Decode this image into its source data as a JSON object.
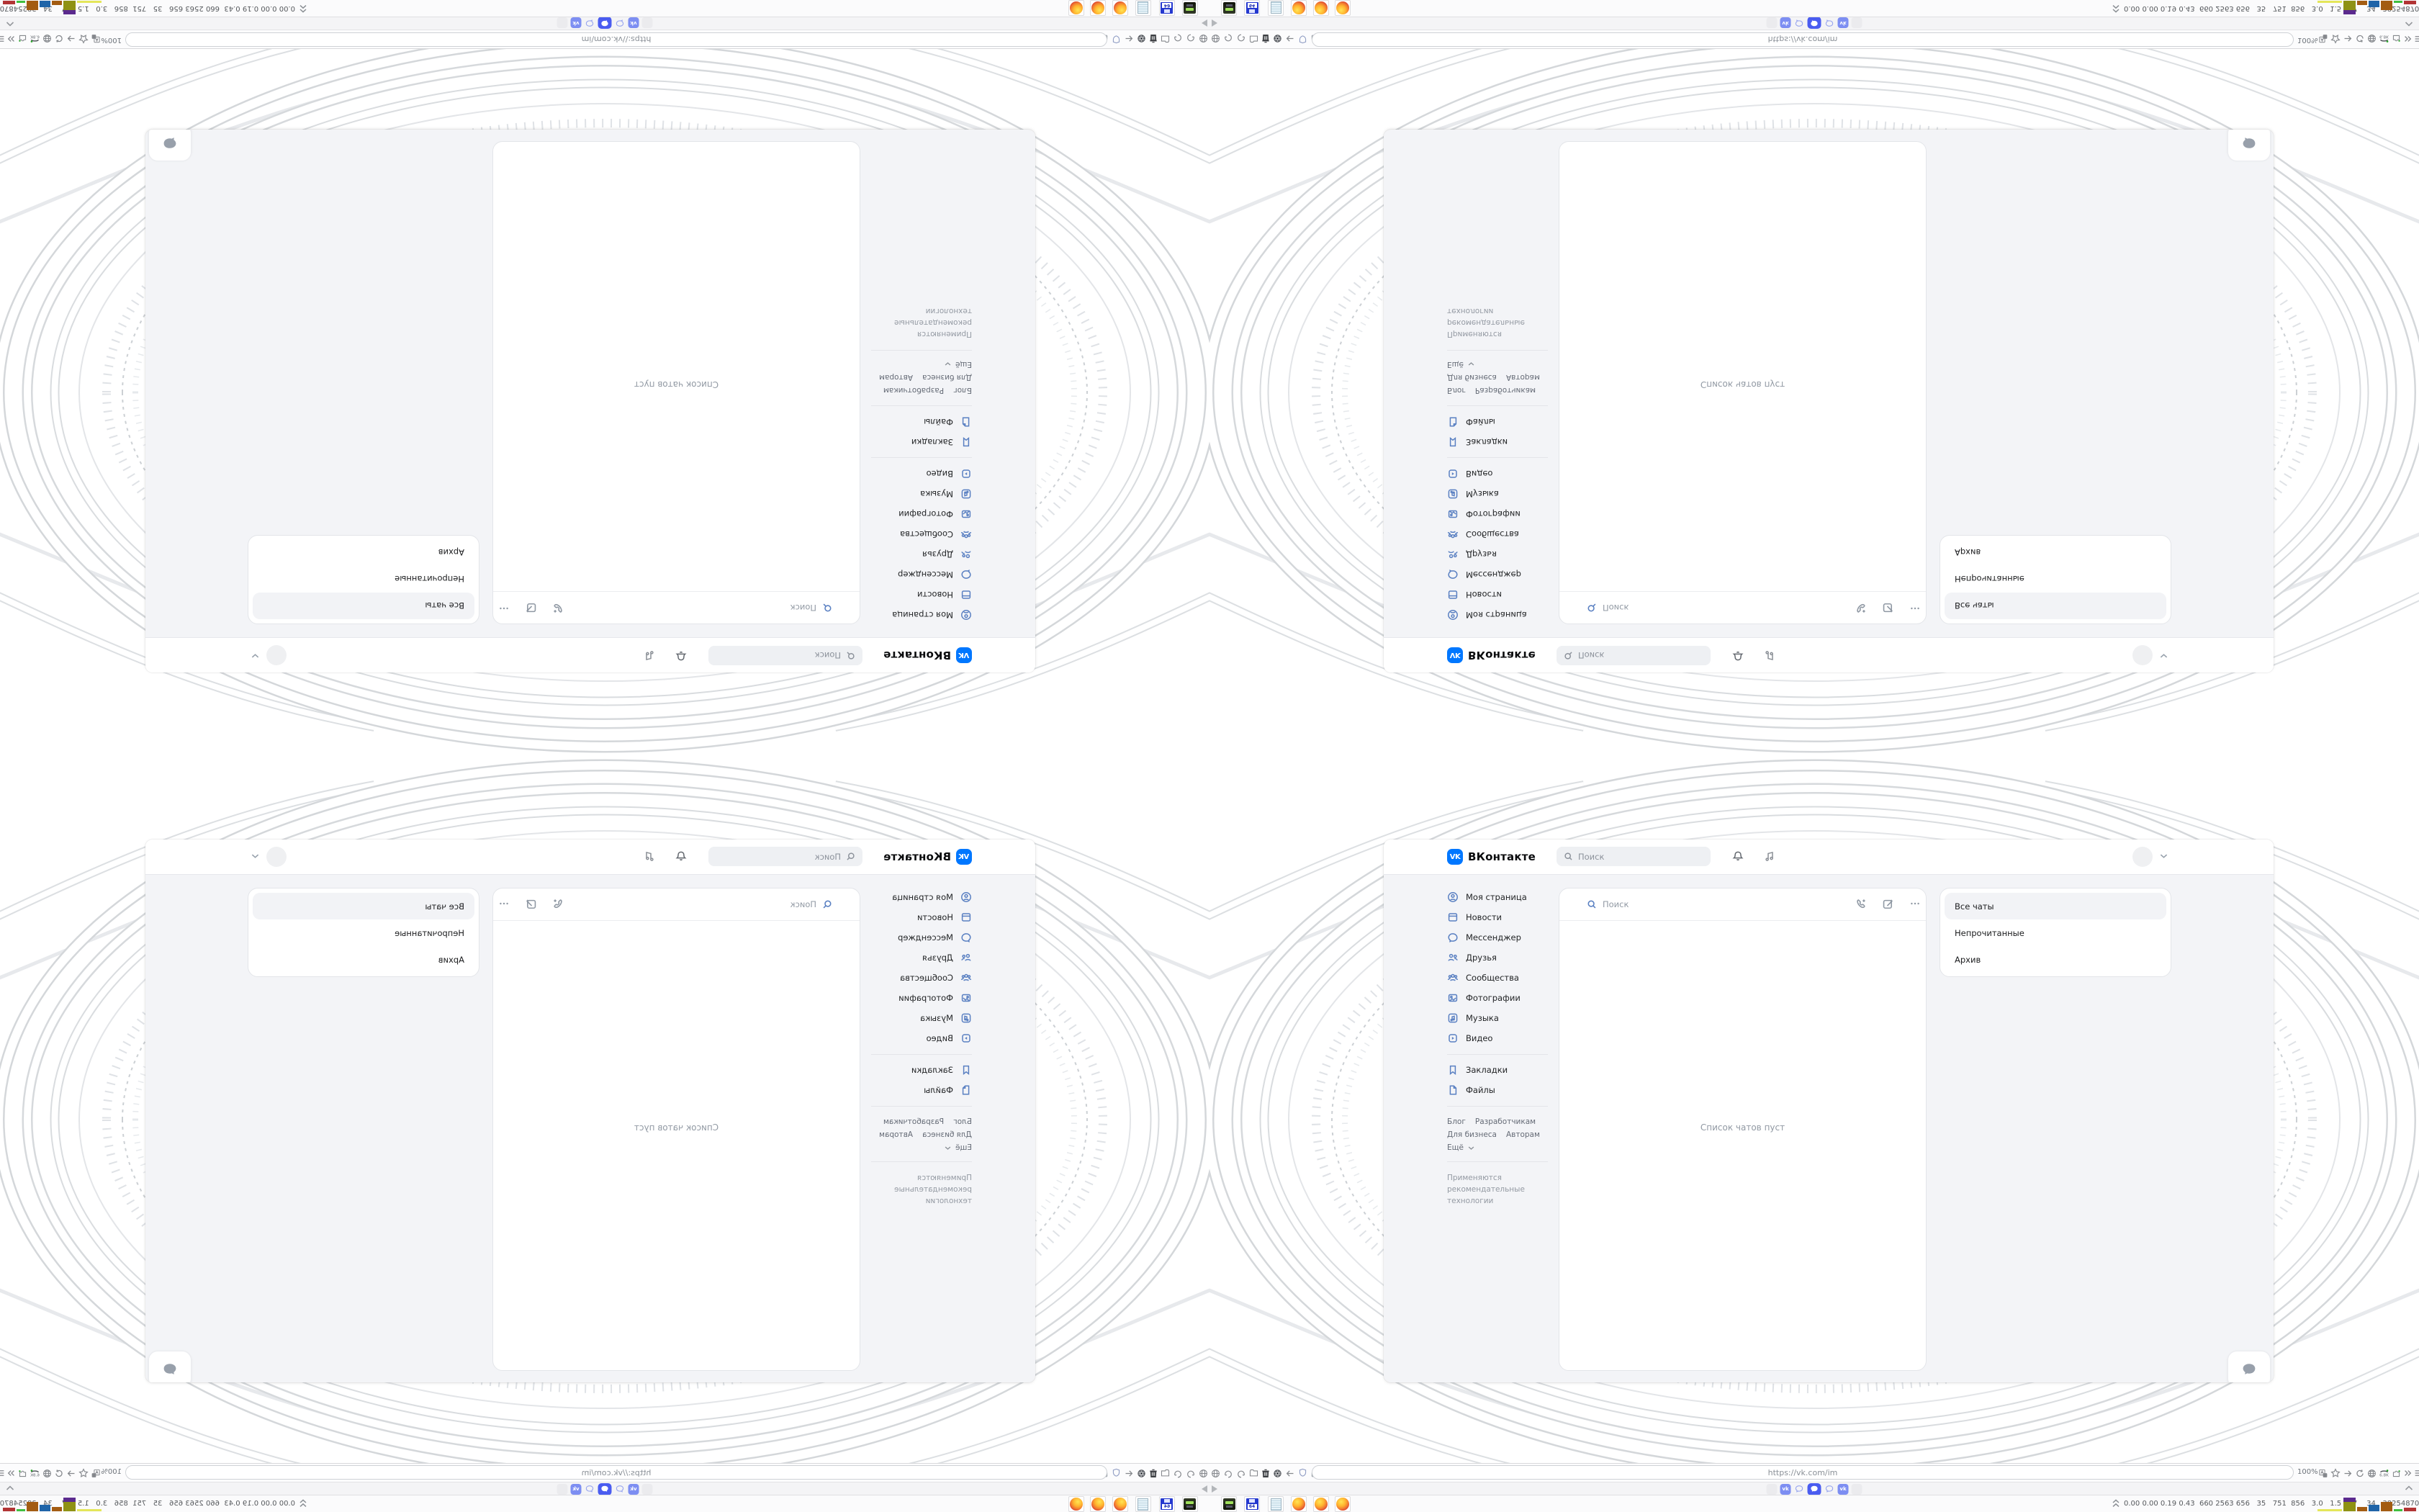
{
  "vk": {
    "logo": "VK",
    "brand": "ВКонтакте",
    "favicon_label": "vk",
    "header": {
      "search_placeholder": "Поиск"
    },
    "sidebar": {
      "items": [
        {
          "icon": "profile-icon",
          "label": "Моя страница"
        },
        {
          "icon": "news-icon",
          "label": "Новости"
        },
        {
          "icon": "messenger-icon",
          "label": "Мессенджер"
        },
        {
          "icon": "friends-icon",
          "label": "Друзья"
        },
        {
          "icon": "communities-icon",
          "label": "Сообщества"
        },
        {
          "icon": "photos-icon",
          "label": "Фотографии"
        },
        {
          "icon": "music-icon",
          "label": "Музыка"
        },
        {
          "icon": "video-icon",
          "label": "Видео"
        },
        {
          "icon": "bookmarks-icon",
          "label": "Закладки"
        },
        {
          "icon": "files-icon",
          "label": "Файлы"
        }
      ]
    },
    "footer_links": [
      "Блог",
      "Разработчикам",
      "Для бизнеса",
      "Авторам",
      "Ещё"
    ],
    "recommendation_note": "Применяются рекомендательные технологии",
    "messenger": {
      "search_placeholder": "Поиск",
      "empty_state": "Список чатов пуст"
    },
    "chat_filters": {
      "items": [
        "Все чаты",
        "Непрочитанные",
        "Архив"
      ],
      "active": "Все чаты"
    }
  },
  "browser": {
    "url": "https://vk.com/im",
    "zoom_level": "100%",
    "extension_badge": "6.8K",
    "tabs": [
      {
        "type": "empty"
      },
      {
        "type": "vk"
      },
      {
        "type": "bubble"
      },
      {
        "type": "bubble",
        "active": true
      },
      {
        "type": "bubble"
      },
      {
        "type": "vk"
      },
      {
        "type": "empty"
      }
    ]
  },
  "taskbar": {
    "launchers": [
      "drive-app",
      "floppy-64-app",
      "notepad-app",
      "firefox",
      "firefox",
      "firefox"
    ],
    "floppy_label": "64",
    "monitor_text": "0.00 0.00 0.19 0.43  660 2563 656   35   751  856   3.0   1.5   37    34   38254870",
    "graph": [
      {
        "w": 34,
        "h": 3,
        "color": "#e4e65a"
      },
      {
        "w": 17,
        "h": 13,
        "color": "#8f9214",
        "cap": "#5b2a8e",
        "caph": 6
      },
      {
        "w": 14,
        "h": 6,
        "color": "#a35c12"
      },
      {
        "w": 15,
        "h": 9,
        "color": "#1f64a8"
      },
      {
        "w": 16,
        "h": 13,
        "color": "#a35c12"
      },
      {
        "w": 12,
        "h": 3,
        "color": "#3fbf3f"
      },
      {
        "w": 17,
        "h": 5,
        "color": "#b23434"
      }
    ]
  },
  "colors": {
    "vk_blue": "#0077ff",
    "active_tab_blue": "#4a5cf0",
    "sidebar_icon_blue": "#5a80c2",
    "lace_gray": "#d6d9dc"
  }
}
